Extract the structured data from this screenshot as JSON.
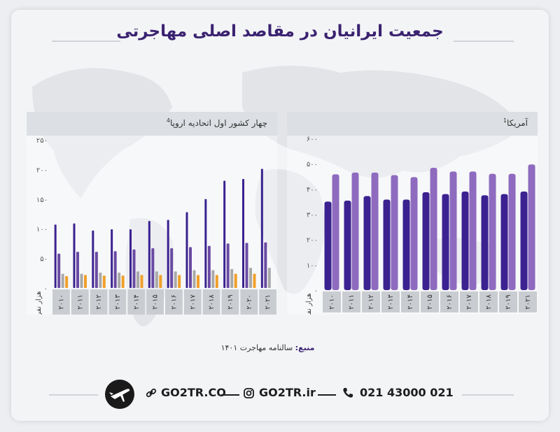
{
  "title": "جمعیت ایرانیان در مقاصد اصلی مهاجرتی",
  "colors": {
    "dark_purple": "#3b2290",
    "light_purple": "#8e6bbf",
    "mid_purple": "#6a4aa3",
    "gray": "#a9a9a9",
    "orange": "#f0a02a",
    "title": "#3a2270"
  },
  "chart_data": [
    {
      "type": "bar",
      "title": "آمریکا",
      "title_footnote": "1",
      "ylabel": "هزار نفر",
      "ylim": [
        0,
        600
      ],
      "yticks": [
        0,
        100,
        200,
        300,
        400,
        500,
        600
      ],
      "ytick_labels": [
        "۰",
        "۱۰۰",
        "۲۰۰",
        "۳۰۰",
        "۴۰۰",
        "۵۰۰",
        "۶۰۰"
      ],
      "categories": [
        "۲۰۱۰",
        "۲۰۱۱",
        "۲۰۱۲",
        "۲۰۱۳",
        "۲۰۱۴",
        "۲۰۱۵",
        "۲۰۱۶",
        "۲۰۱۷",
        "۲۰۱۸",
        "۲۰۱۹",
        "۲۰۲۱"
      ],
      "series": [
        {
          "values": [
            350,
            354,
            372,
            358,
            358,
            387,
            380,
            390,
            375,
            380,
            390
          ]
        },
        {
          "values": [
            458,
            465,
            465,
            455,
            447,
            484,
            469,
            469,
            460,
            460,
            497
          ]
        }
      ],
      "grid": false
    },
    {
      "type": "bar",
      "title": "چهار کشور اول اتحادیه اروپا",
      "title_footnote": "4",
      "ylabel": "هزار نفر",
      "ylim": [
        0,
        250
      ],
      "yticks": [
        0,
        50,
        100,
        150,
        200,
        250
      ],
      "ytick_labels": [
        "۰",
        "۵۰",
        "۱۰۰",
        "۱۵۰",
        "۲۰۰",
        "۲۵۰"
      ],
      "categories": [
        "۲۰۱۰",
        "۲۰۱۱",
        "۲۰۱۲",
        "۲۰۱۳",
        "۲۰۱۴",
        "۲۰۱۵",
        "۲۰۱۶",
        "۲۰۱۷",
        "۲۰۱۸",
        "۲۰۱۹",
        "۲۰۲۰",
        "۲۰۲۱"
      ],
      "series": [
        {
          "values": [
            107,
            109,
            97,
            99,
            99,
            113,
            115,
            128,
            150,
            181,
            184,
            201
          ]
        },
        {
          "values": [
            58,
            61,
            61,
            62,
            65,
            67,
            67,
            69,
            71,
            75,
            76,
            77
          ]
        },
        {
          "values": [
            24,
            24,
            26,
            26,
            28,
            28,
            28,
            30,
            30,
            32,
            34,
            34
          ]
        },
        {
          "values": [
            20,
            22,
            21,
            21,
            22,
            22,
            22,
            22,
            22,
            24,
            24,
            0
          ]
        }
      ],
      "grid": false
    }
  ],
  "source": {
    "label": "منبع:",
    "text": "سالنامه مهاجرت ۱۴۰۱"
  },
  "footer": {
    "phone": "021 43000 021",
    "instagram": "GO2TR.ir",
    "website": "GO2TR.CO",
    "phone_icon": "phone-icon",
    "instagram_icon": "instagram-icon",
    "link_icon": "link-icon",
    "logo_icon": "plane-logo-icon"
  }
}
